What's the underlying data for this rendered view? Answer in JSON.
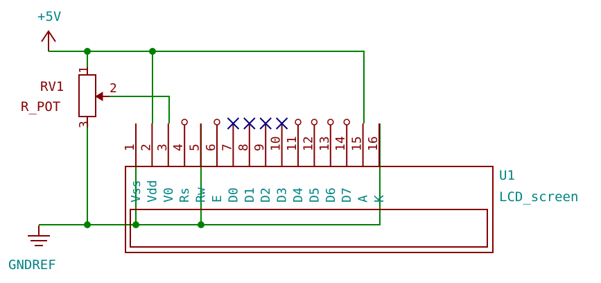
{
  "power": {
    "vcc_label": "+5V",
    "gnd_label": "GNDREF"
  },
  "potentiometer": {
    "ref": "RV1",
    "value": "R_POT",
    "pins": {
      "top": "1",
      "wiper": "2",
      "bottom": "3"
    }
  },
  "lcd": {
    "ref": "U1",
    "value": "LCD_screen",
    "pins": [
      {
        "num": "1",
        "name": "Vss"
      },
      {
        "num": "2",
        "name": "Vdd"
      },
      {
        "num": "3",
        "name": "V0"
      },
      {
        "num": "4",
        "name": "Rs"
      },
      {
        "num": "5",
        "name": "Rw"
      },
      {
        "num": "6",
        "name": "E"
      },
      {
        "num": "7",
        "name": "D0"
      },
      {
        "num": "8",
        "name": "D1"
      },
      {
        "num": "9",
        "name": "D2"
      },
      {
        "num": "10",
        "name": "D3"
      },
      {
        "num": "11",
        "name": "D4"
      },
      {
        "num": "12",
        "name": "D5"
      },
      {
        "num": "13",
        "name": "D6"
      },
      {
        "num": "14",
        "name": "D7"
      },
      {
        "num": "15",
        "name": "A"
      },
      {
        "num": "16",
        "name": "K"
      }
    ]
  }
}
